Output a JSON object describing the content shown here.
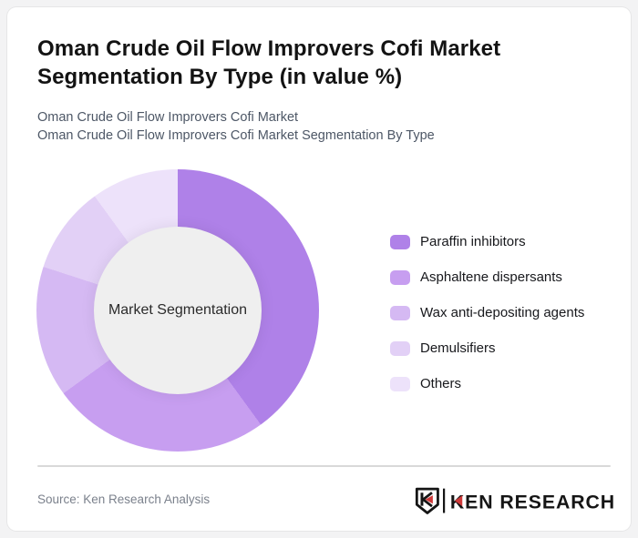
{
  "page": {
    "background_color": "#f3f3f4",
    "card_background_color": "#ffffff"
  },
  "header": {
    "title": "Oman Crude Oil Flow Improvers Cofi Market Segmentation By Type (in value %)",
    "subtitle_line1": "Oman Crude Oil Flow Improvers Cofi Market",
    "subtitle_line2": "Oman Crude Oil Flow Improvers Cofi Market Segmentation By Type"
  },
  "chart_data": {
    "type": "pie",
    "variant": "donut",
    "title": "Oman Crude Oil Flow Improvers Cofi Market Segmentation By Type (in value %)",
    "center_label": "Market Segmentation",
    "unit": "value %",
    "categories": [
      "Paraffin inhibitors",
      "Asphaltene dispersants",
      "Wax anti-depositing agents",
      "Demulsifiers",
      "Others"
    ],
    "values": [
      40,
      25,
      15,
      10,
      10
    ],
    "colors": [
      "#af81e8",
      "#c79ef0",
      "#d5b9f3",
      "#e2d0f6",
      "#ede2fa"
    ],
    "start_angle_deg": 0,
    "direction": "clockwise",
    "legend_position": "right",
    "hole_color": "#efefef"
  },
  "footer": {
    "source_text": "Source: Ken Research Analysis",
    "logo": {
      "monogram": "K",
      "wordmark": "KEN RESEARCH",
      "accent_color": "#cf3a3a",
      "ink_color": "#151515"
    }
  }
}
